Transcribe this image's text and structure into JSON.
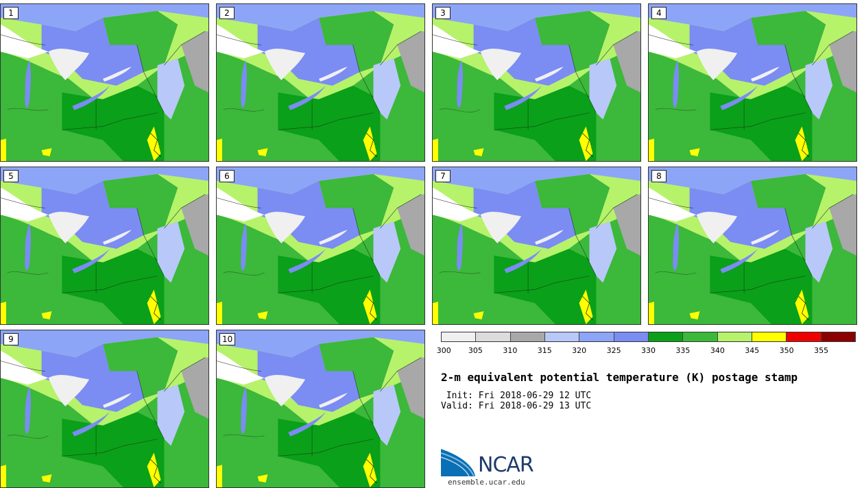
{
  "map_colors": {
    "white": "#ffffff",
    "lightgray": "#f0f0f0",
    "gray": "#a8a8a8",
    "lightblue": "#b8c8f8",
    "blue": "#8da5f6",
    "darkblue": "#7b8cf3",
    "darkgreen": "#0aa019",
    "green": "#3cb83a",
    "lightgreen": "#b7f26b",
    "yellow": "#ffff00"
  },
  "stamps": [
    {
      "label": "1"
    },
    {
      "label": "2"
    },
    {
      "label": "3"
    },
    {
      "label": "4"
    },
    {
      "label": "5"
    },
    {
      "label": "6"
    },
    {
      "label": "7"
    },
    {
      "label": "8"
    },
    {
      "label": "9"
    },
    {
      "label": "10"
    }
  ],
  "colorbar": {
    "colors": [
      "#f0f0f0",
      "#dcdcdc",
      "#a8a8a8",
      "#b8c8f8",
      "#8da5f6",
      "#7b8cf3",
      "#0aa019",
      "#3cb83a",
      "#b7f26b",
      "#ffff00",
      "#ee0000",
      "#8b0000"
    ],
    "ticks": [
      "300",
      "305",
      "310",
      "315",
      "320",
      "325",
      "330",
      "335",
      "340",
      "345",
      "350",
      "355"
    ]
  },
  "title": "2-m equivalent potential temperature (K) postage stamp",
  "init": " Init: Fri 2018-06-29 12 UTC",
  "valid": "Valid: Fri 2018-06-29 13 UTC",
  "logo": {
    "text": "NCAR",
    "color": "#1d3a6b"
  },
  "site": "ensemble.ucar.edu"
}
